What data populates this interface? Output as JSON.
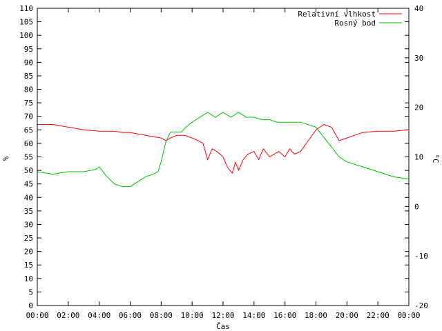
{
  "chart_data": {
    "type": "line",
    "xlabel": "Čas",
    "ylabel_left": "%",
    "ylabel_right": "°C",
    "x_ticks": [
      "00:00",
      "02:00",
      "04:00",
      "06:00",
      "08:00",
      "10:00",
      "12:00",
      "14:00",
      "16:00",
      "18:00",
      "20:00",
      "22:00",
      "00:00"
    ],
    "y_left_ticks": [
      0,
      5,
      10,
      15,
      20,
      25,
      30,
      35,
      40,
      45,
      50,
      55,
      60,
      65,
      70,
      75,
      80,
      85,
      90,
      95,
      100,
      105,
      110
    ],
    "y_right_ticks": [
      -20,
      -10,
      0,
      10,
      20,
      30,
      40
    ],
    "ylim_left": [
      0,
      110
    ],
    "ylim_right": [
      -20,
      40
    ],
    "xlim_hours": [
      0,
      24
    ],
    "grid": false,
    "legend_position": "top-right",
    "series": [
      {
        "name": "Relativní vlhkost",
        "axis": "left",
        "color": "#ff0000",
        "x": [
          0,
          1,
          2,
          3,
          4,
          5,
          5.5,
          6,
          7,
          8,
          8.3,
          8.6,
          9,
          9.5,
          10,
          10.4,
          10.7,
          11,
          11.3,
          11.6,
          12,
          12.3,
          12.6,
          12.8,
          13,
          13.3,
          13.6,
          14,
          14.3,
          14.6,
          15,
          15.3,
          15.6,
          16,
          16.3,
          16.6,
          17,
          17.5,
          18,
          18.5,
          19,
          19.5,
          20,
          21,
          22,
          23,
          24
        ],
        "values": [
          67,
          67,
          66,
          65,
          64.5,
          64.5,
          64,
          64,
          63,
          62,
          61,
          62,
          63,
          63,
          62,
          61,
          60,
          54,
          58,
          57,
          55,
          51,
          49,
          53,
          50,
          54,
          56,
          57,
          54,
          58,
          55,
          56,
          57,
          55,
          58,
          56,
          57,
          61,
          65,
          67,
          66,
          61,
          62,
          64,
          64.5,
          64.5,
          65
        ]
      },
      {
        "name": "Rosný bod",
        "axis": "right",
        "color": "#00c000",
        "x": [
          0,
          1,
          2,
          3,
          3.8,
          4,
          4.5,
          5,
          5.5,
          6,
          6.5,
          7,
          7.5,
          7.8,
          8,
          8.3,
          8.6,
          9,
          9.3,
          9.6,
          10,
          10.5,
          11,
          11.5,
          12,
          12.5,
          13,
          13.5,
          14,
          14.5,
          15,
          15.5,
          16,
          16.5,
          17,
          17.5,
          18,
          18.5,
          19,
          19.5,
          20,
          21,
          22,
          23,
          24
        ],
        "values": [
          7,
          6.5,
          7,
          7,
          7.5,
          8,
          6,
          4.5,
          4,
          4,
          5,
          6,
          6.5,
          7,
          9,
          13,
          15,
          15,
          15,
          16,
          17,
          18,
          19,
          18,
          19,
          18,
          19,
          18,
          18,
          17.5,
          17.5,
          17,
          17,
          17,
          17,
          16.5,
          16,
          14,
          12,
          10,
          9,
          8,
          7,
          6,
          5.5
        ]
      }
    ]
  }
}
